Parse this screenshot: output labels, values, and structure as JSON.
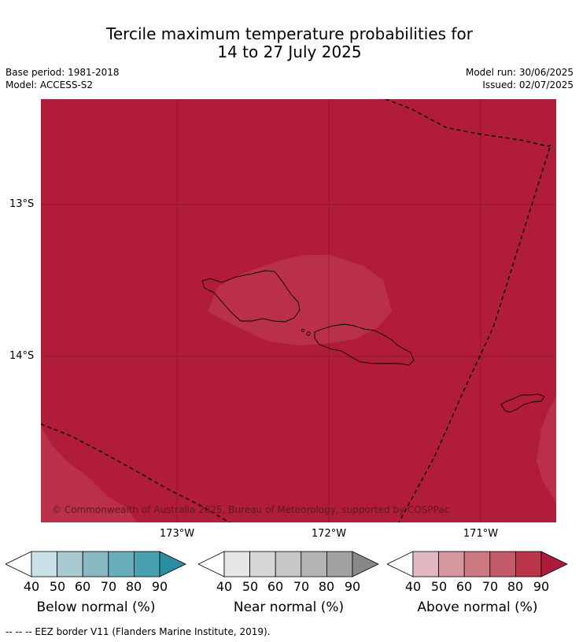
{
  "header": {
    "title_line1": "Tercile maximum temperature probabilities for",
    "title_line2": "14 to 27 July 2025",
    "base_period": "Base period: 1981-2018",
    "model": "Model: ACCESS-S2",
    "model_run": "Model run: 30/06/2025",
    "issued": "Issued: 02/07/2025"
  },
  "map": {
    "lat_labels": [
      "13°S",
      "14°S"
    ],
    "lon_labels": [
      "173°W",
      "172°W",
      "171°W"
    ],
    "copyright": "© Commonwealth of Australia 2025, Bureau of Meteorology, supported by COSPPac",
    "colors": {
      "above_90": "#b11c38",
      "above_80": "#bb3049",
      "coastline": "#000000"
    }
  },
  "legends": [
    {
      "label": "Below normal (%)",
      "ticks": [
        "40",
        "50",
        "60",
        "70",
        "80",
        "90"
      ],
      "colors": [
        "#c9e2e8",
        "#a9cad1",
        "#89b7c2",
        "#6aadbb",
        "#49a0b1",
        "#2b8da2"
      ]
    },
    {
      "label": "Near normal (%)",
      "ticks": [
        "40",
        "50",
        "60",
        "70",
        "80",
        "90"
      ],
      "colors": [
        "#e6e6e6",
        "#d6d6d6",
        "#c6c6c6",
        "#b4b4b4",
        "#a1a1a1",
        "#888888"
      ]
    },
    {
      "label": "Above normal (%)",
      "ticks": [
        "40",
        "50",
        "60",
        "70",
        "80",
        "90"
      ],
      "colors": [
        "#e2b7bf",
        "#d7979f",
        "#cd7984",
        "#c25a68",
        "#b9354a",
        "#ad1a3a"
      ]
    }
  ],
  "footer": "--  --  -- EEZ border V11 (Flanders Marine Institute, 2019)."
}
